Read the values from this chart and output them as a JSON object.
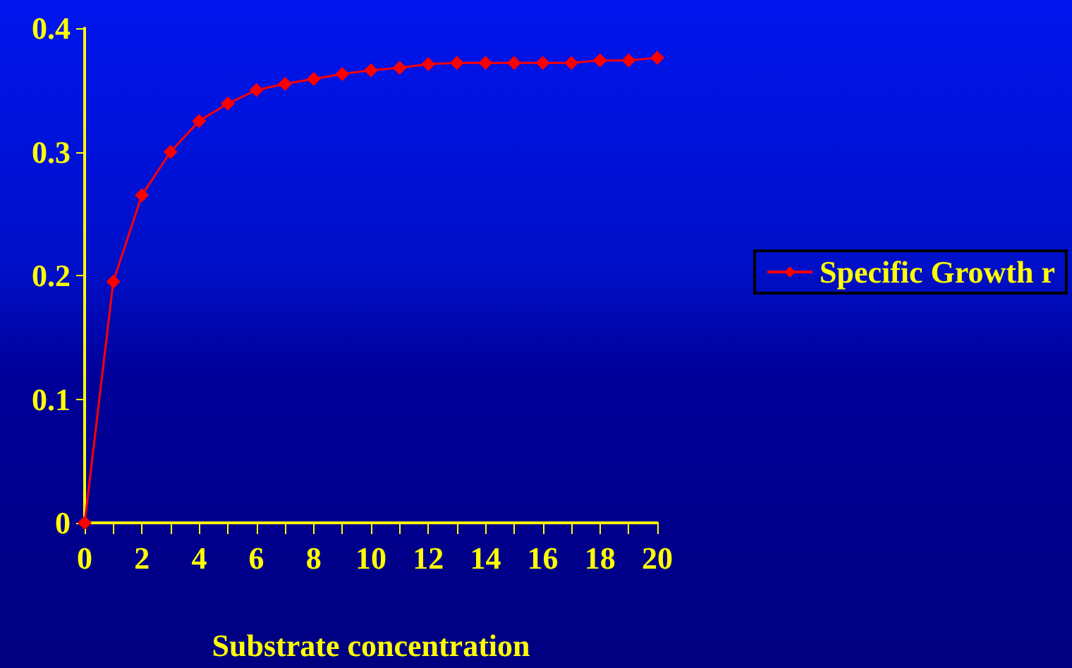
{
  "chart_data": {
    "type": "line",
    "xlabel": "Substrate concentration",
    "x": [
      0,
      1,
      2,
      3,
      4,
      5,
      6,
      7,
      8,
      9,
      10,
      11,
      12,
      13,
      14,
      15,
      16,
      17,
      18,
      19,
      20
    ],
    "series": [
      {
        "name": "Specific Growth r",
        "color": "#ff0000",
        "values": [
          0,
          0.195,
          0.265,
          0.3,
          0.325,
          0.339,
          0.35,
          0.355,
          0.359,
          0.363,
          0.366,
          0.368,
          0.371,
          0.372,
          0.372,
          0.372,
          0.372,
          0.372,
          0.374,
          0.374,
          0.376
        ]
      }
    ],
    "xlim": [
      0,
      20
    ],
    "xticks": [
      0,
      2,
      4,
      6,
      8,
      10,
      12,
      14,
      16,
      18,
      20
    ],
    "ylim": [
      0,
      0.4
    ],
    "yticks": [
      0,
      0.1,
      0.2,
      0.3,
      0.4
    ],
    "grid": false,
    "legend": "right",
    "marker": "diamond",
    "line_style": "solid"
  }
}
